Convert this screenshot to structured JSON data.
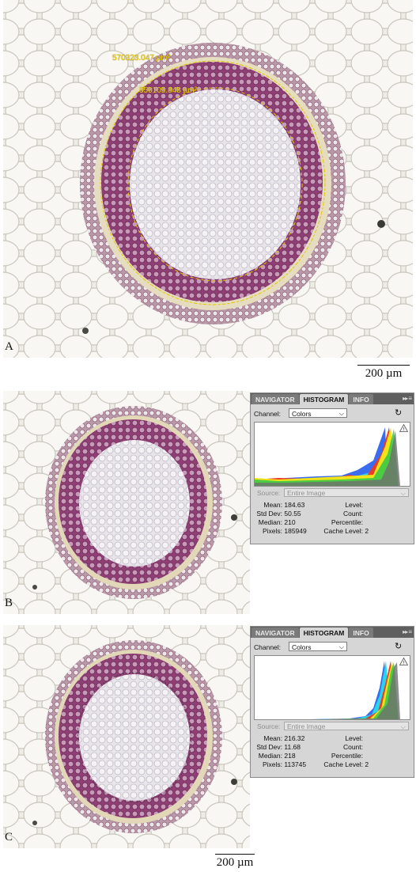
{
  "panels": {
    "a": {
      "letter": "A",
      "measure_outer": "570323.047 µm²",
      "measure_inner": "350105.848 µm²"
    },
    "b": {
      "letter": "B"
    },
    "c": {
      "letter": "C"
    }
  },
  "scalebar": {
    "label": "200 µm"
  },
  "histogram_b": {
    "tabs": [
      "NAVIGATOR",
      "HISTOGRAM",
      "INFO"
    ],
    "active_tab": "HISTOGRAM",
    "channel_label": "Channel:",
    "channel_value": "Colors",
    "source_label": "Source:",
    "source_value": "Entire Image",
    "stats_left": [
      {
        "label": "Mean:",
        "value": "184.63"
      },
      {
        "label": "Std Dev:",
        "value": "50.55"
      },
      {
        "label": "Median:",
        "value": "210"
      },
      {
        "label": "Pixels:",
        "value": "185949"
      }
    ],
    "stats_right": [
      {
        "label": "Level:",
        "value": ""
      },
      {
        "label": "Count:",
        "value": ""
      },
      {
        "label": "Percentile:",
        "value": ""
      },
      {
        "label": "Cache Level:",
        "value": "2"
      }
    ]
  },
  "histogram_c": {
    "tabs": [
      "NAVIGATOR",
      "HISTOGRAM",
      "INFO"
    ],
    "active_tab": "HISTOGRAM",
    "channel_label": "Channel:",
    "channel_value": "Colors",
    "source_label": "Source:",
    "source_value": "Entire Image",
    "stats_left": [
      {
        "label": "Mean:",
        "value": "216.32"
      },
      {
        "label": "Std Dev:",
        "value": "11.68"
      },
      {
        "label": "Median:",
        "value": "218"
      },
      {
        "label": "Pixels:",
        "value": "113745"
      }
    ],
    "stats_right": [
      {
        "label": "Level:",
        "value": ""
      },
      {
        "label": "Count:",
        "value": ""
      },
      {
        "label": "Percentile:",
        "value": ""
      },
      {
        "label": "Cache Level:",
        "value": "2"
      }
    ]
  }
}
